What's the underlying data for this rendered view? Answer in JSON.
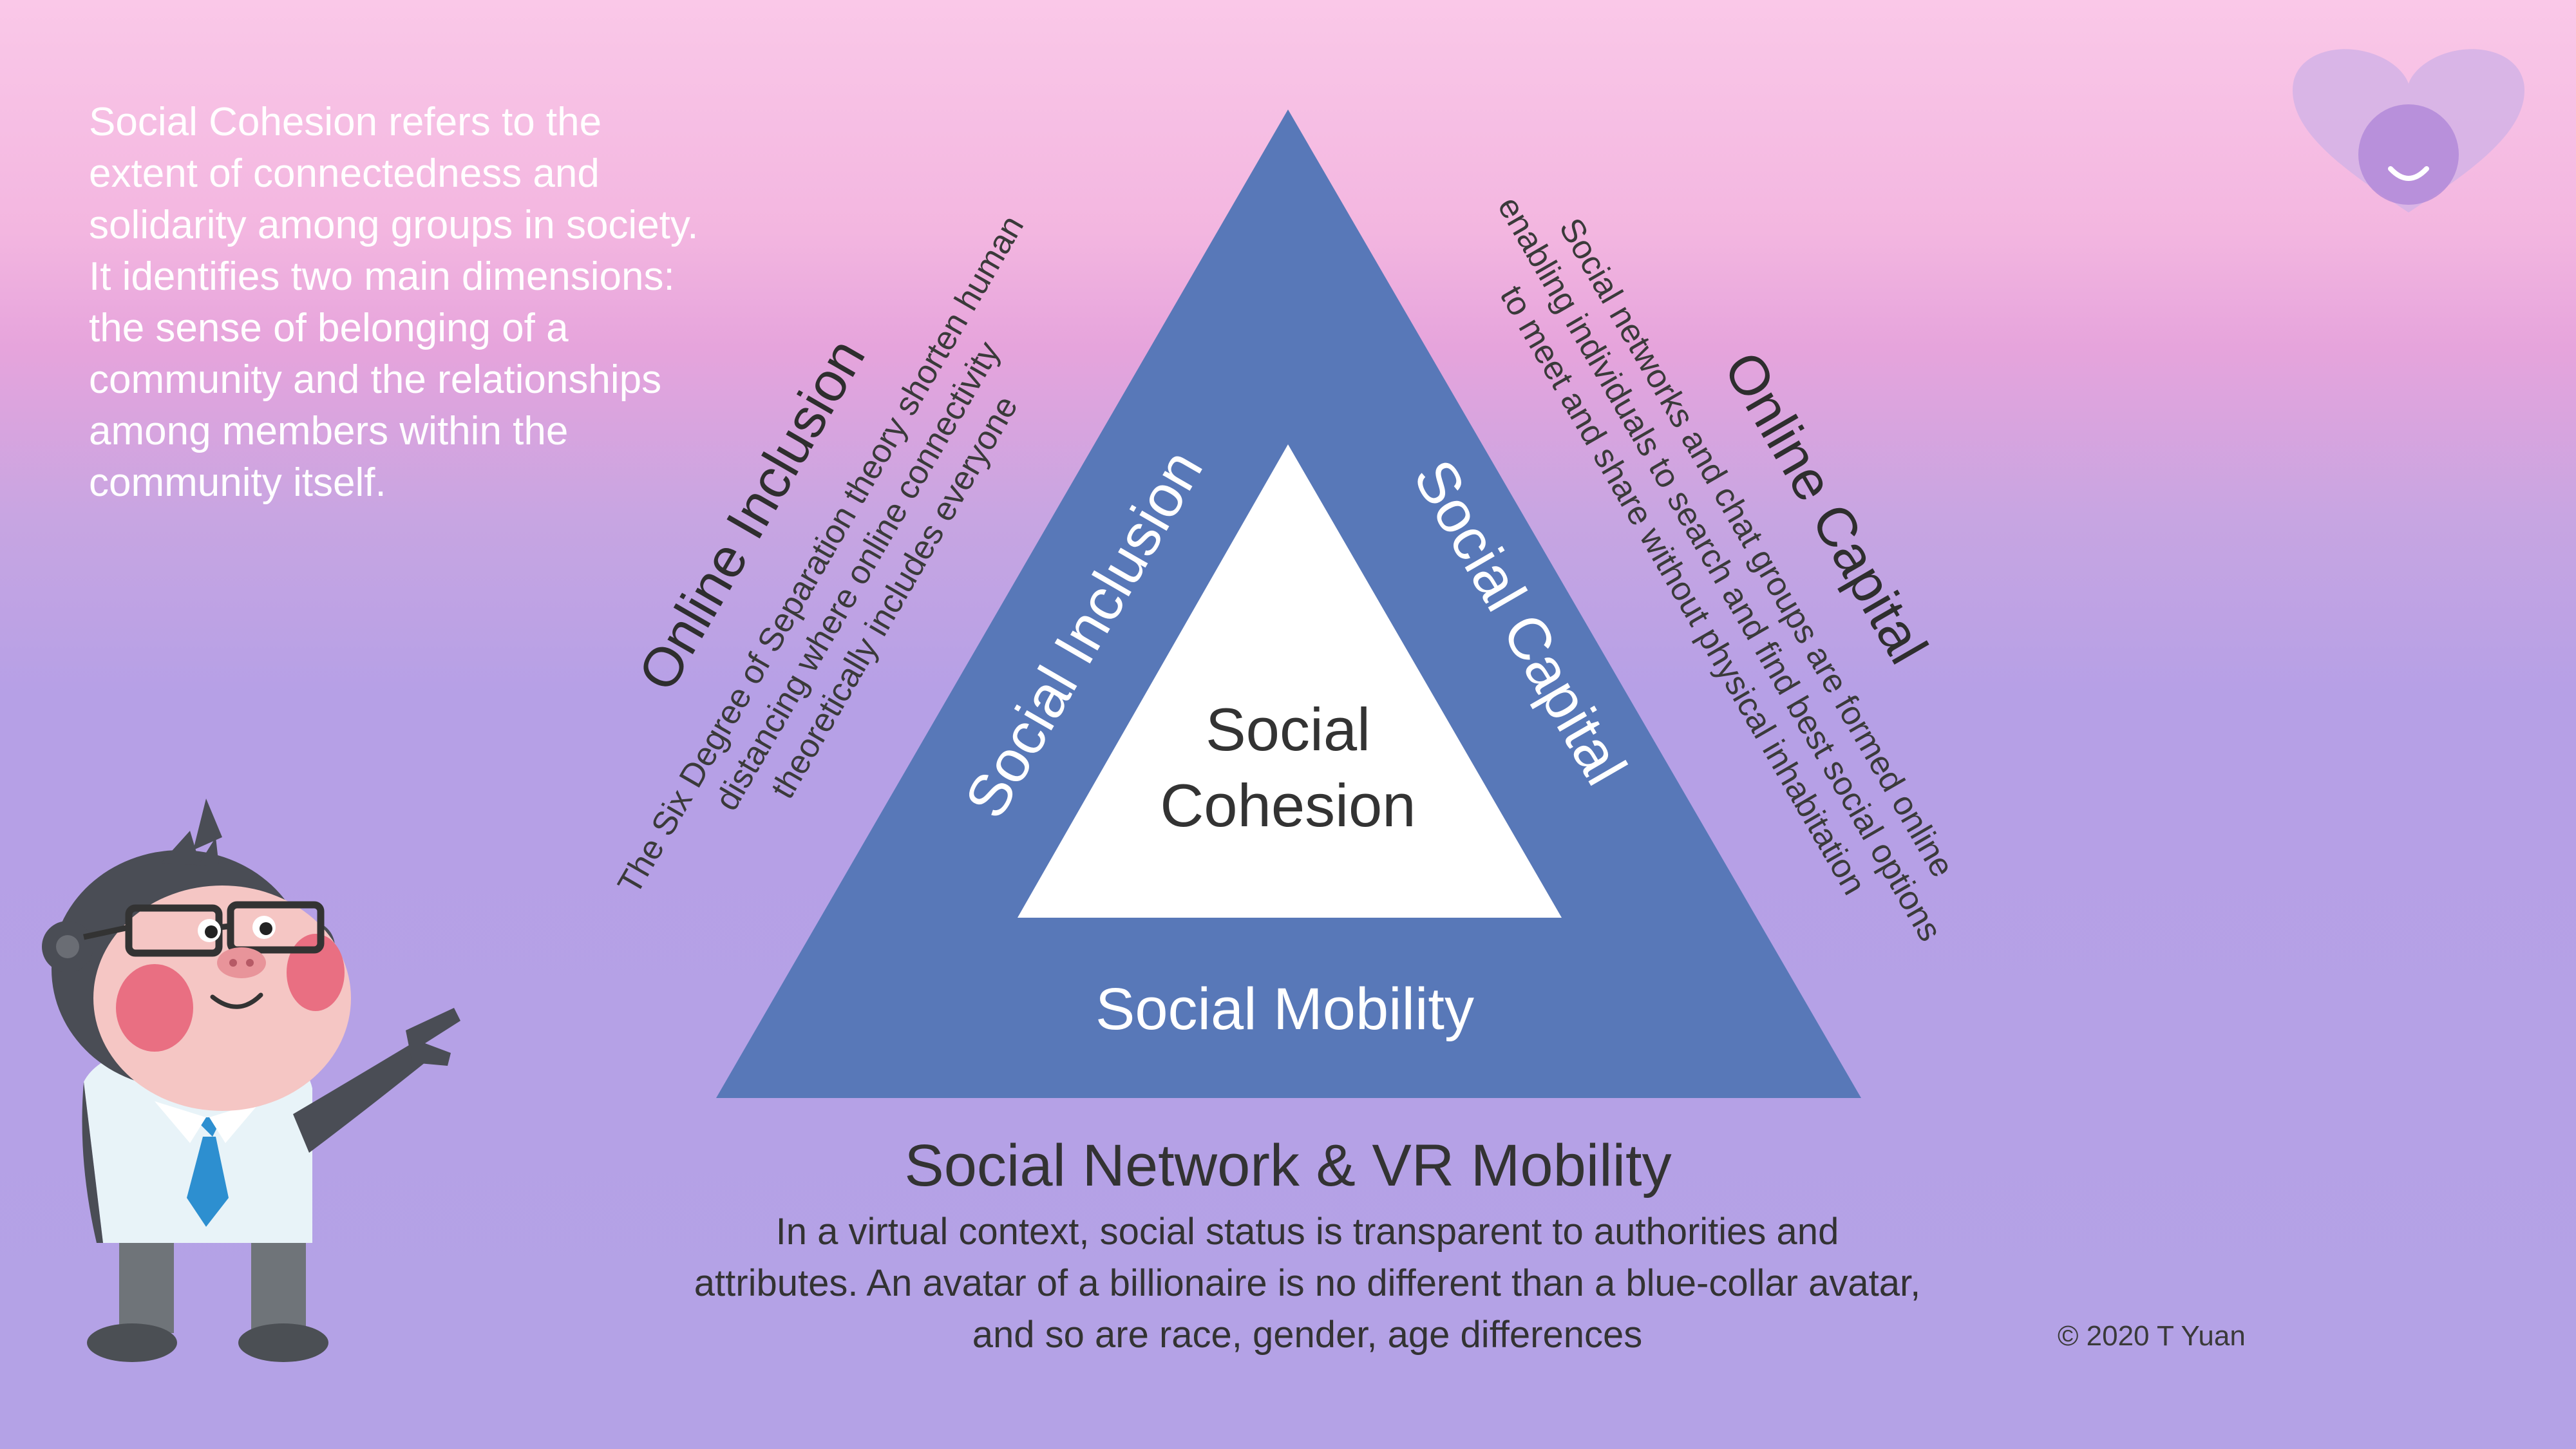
{
  "intro_text": "Social Cohesion refers to the extent of connectedness and solidarity among groups in society. It identifies two main dimensions: the sense of belonging of a community and the relationships among members within the community itself.",
  "diagram": {
    "center_label_line1": "Social",
    "center_label_line2": "Cohesion",
    "left_band_label": "Social Inclusion",
    "right_band_label": "Social Capital",
    "bottom_band_label": "Social Mobility",
    "left_outer_title": "Online Inclusion",
    "left_outer_lines": [
      "The Six Degree of Separation theory shorten human",
      "distancing where online connectivity",
      "theoretically includes everyone"
    ],
    "right_outer_title": "Online Capital",
    "right_outer_lines": [
      "Social networks and chat groups are formed online",
      "enabling individuals to search and find best social options",
      "to meet and share without physical inhabitation"
    ]
  },
  "bottom": {
    "heading": "Social Network & VR Mobility",
    "lines": [
      "In a virtual context, social status is transparent to authorities and",
      "attributes. An avatar of a billionaire is no different than a blue-collar avatar,",
      "and so are race, gender, age differences"
    ]
  },
  "copyright": "© 2020 T Yuan",
  "colors": {
    "outer_triangle": "#5878b8",
    "inner_triangle": "#ffffff",
    "intro_text": "#ffffff",
    "body_text": "#333333"
  }
}
